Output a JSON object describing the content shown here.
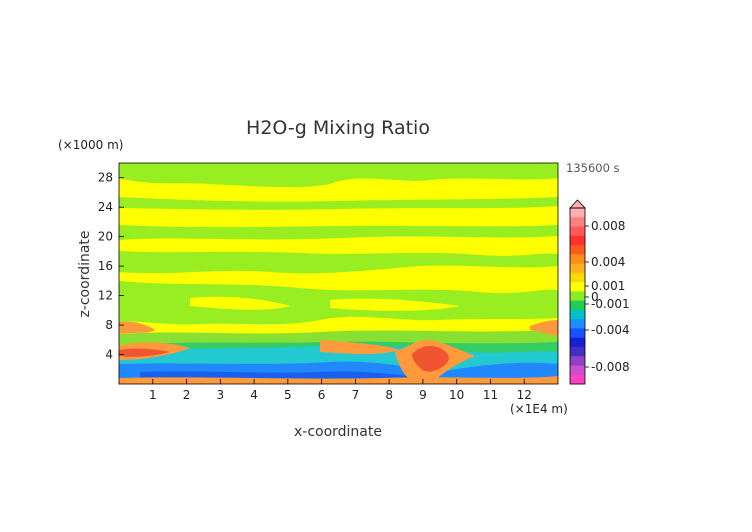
{
  "chart_data": {
    "type": "heatmap",
    "title": "H2O-g Mixing Ratio",
    "xlabel": "x-coordinate",
    "ylabel": "z-coordinate",
    "x_unit": "(×1E4 m)",
    "y_unit": "(×1000 m)",
    "time_label": "135600 s",
    "xlim": [
      0,
      13
    ],
    "ylim": [
      0,
      30
    ],
    "x_ticks": [
      1,
      2,
      3,
      4,
      5,
      6,
      7,
      8,
      9,
      10,
      11,
      12
    ],
    "y_ticks": [
      4,
      8,
      12,
      16,
      20,
      24,
      28
    ],
    "colorbar": {
      "ticks": [
        "0.008",
        "0.004",
        "0.001",
        "0",
        "-0.001",
        "-0.004",
        "-0.008"
      ],
      "colors_top_to_bottom": [
        "#ffb0b0",
        "#ff8080",
        "#ff5a5a",
        "#ff3030",
        "#ff5a1a",
        "#ff8c1a",
        "#ffb020",
        "#ffd800",
        "#ffff00",
        "#88ee22",
        "#22cc55",
        "#00c0c8",
        "#1a90ff",
        "#1a50ff",
        "#1a20d0",
        "#4030c0",
        "#9040c8",
        "#c850d0",
        "#ff40c0"
      ]
    },
    "palette": {
      "yellow": "#ffff00",
      "green": "#99ee22",
      "orange": "#ff9a3c",
      "red": "#ee5530",
      "cyan": "#22c9d0",
      "blue": "#2288ff",
      "teal": "#33cc66"
    }
  }
}
